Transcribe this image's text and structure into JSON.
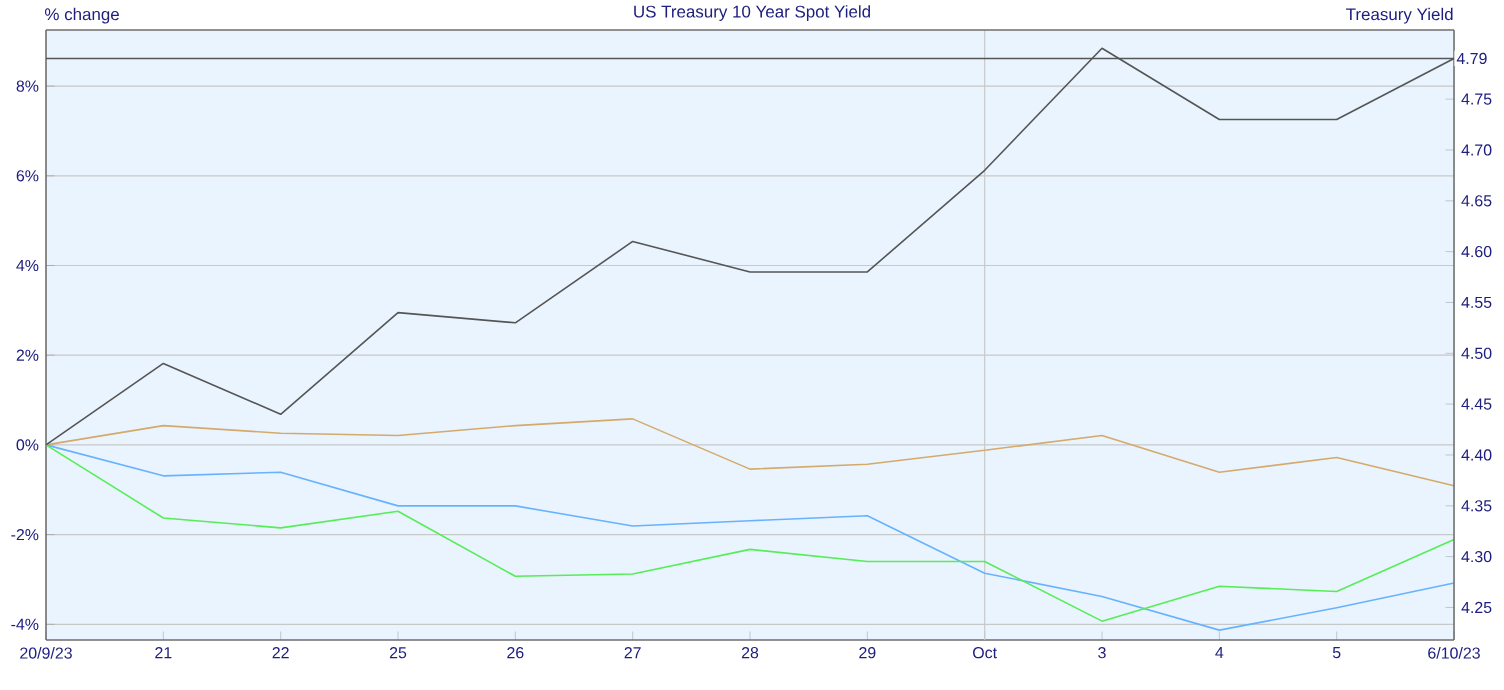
{
  "chart_data": {
    "type": "line",
    "title": "US Treasury 10 Year Spot Yield",
    "ylabel": "% change",
    "y2label": "Treasury Yield",
    "categories": [
      "20/9/23",
      "21",
      "22",
      "25",
      "26",
      "27",
      "28",
      "29",
      "Oct",
      "3",
      "4",
      "5",
      "6/10/23"
    ],
    "series": [
      {
        "color": "#555555",
        "axis": "y2",
        "values": [
          4.41,
          4.49,
          4.44,
          4.54,
          4.53,
          4.61,
          4.58,
          4.58,
          4.68,
          4.8,
          4.73,
          4.73,
          4.79
        ]
      },
      {
        "color": "#d4aa6a",
        "values": [
          0,
          0.43,
          0.26,
          0.21,
          0.43,
          0.58,
          -0.54,
          -0.43,
          -0.12,
          0.21,
          -0.61,
          -0.28,
          -0.91
        ]
      },
      {
        "color": "#66b2ff",
        "values": [
          0,
          -0.69,
          -0.61,
          -1.36,
          -1.36,
          -1.81,
          -1.69,
          -1.58,
          -2.86,
          -3.38,
          -4.13,
          -3.63,
          -3.08
        ]
      },
      {
        "color": "#55ee55",
        "values": [
          0,
          -1.63,
          -1.85,
          -1.48,
          -2.93,
          -2.88,
          -2.33,
          -2.6,
          -2.6,
          -3.93,
          -3.15,
          -3.27,
          -2.11
        ]
      }
    ],
    "ylim": [
      -4.35,
      9.25
    ],
    "yticks": [
      {
        "value": -4,
        "label": "-4%"
      },
      {
        "value": -2,
        "label": "-2%"
      },
      {
        "value": 0,
        "label": "0%"
      },
      {
        "value": 2,
        "label": "2%"
      },
      {
        "value": 4,
        "label": "4%"
      },
      {
        "value": 6,
        "label": "6%"
      },
      {
        "value": 8,
        "label": "8%"
      }
    ],
    "y2lim": [
      4.218,
      4.818
    ],
    "y2ticks": [
      4.25,
      {
        "value": 4.3,
        "label": "4.30"
      },
      4.35,
      {
        "value": 4.4,
        "label": "4.40"
      },
      4.45,
      {
        "value": 4.5,
        "label": "4.50"
      },
      4.55,
      {
        "value": 4.6,
        "label": "4.60"
      },
      4.65,
      {
        "value": 4.7,
        "label": "4.70"
      },
      4.75
    ],
    "grid": "y",
    "marker": "none",
    "ref_lines": [
      {
        "axis": "y2",
        "value": 4.79,
        "label": "4.79",
        "color": "#555555"
      },
      {
        "axis": "x",
        "value": "Oct",
        "color": "#c8c8c8"
      }
    ]
  }
}
